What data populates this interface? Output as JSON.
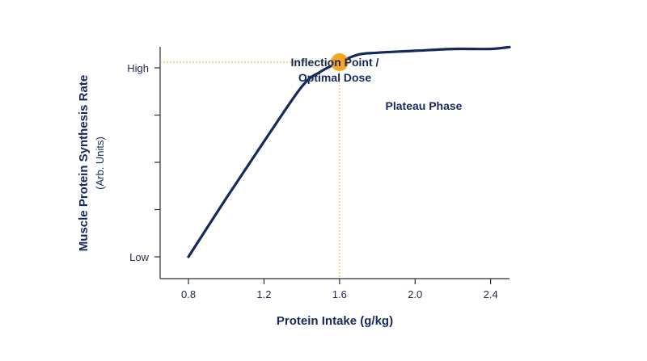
{
  "chart_data": {
    "type": "line",
    "xlabel": "Protein Intake (g/kg)",
    "ylabel": "Muscle Protein Synthesis Rate",
    "ylabel_sub": "(Arb. Units)",
    "xlim": [
      0.65,
      2.5
    ],
    "ylim": [
      0,
      1
    ],
    "x_ticks": [
      0.8,
      1.2,
      1.6,
      2.0,
      2.4
    ],
    "x_tick_labels": [
      "0.8",
      "1.2",
      "1.6",
      "2.0",
      "2.4"
    ],
    "y_ticks": [
      0,
      0.25,
      0.5,
      0.75,
      1
    ],
    "y_tick_labels": [
      "Low",
      "",
      "",
      "",
      "High"
    ],
    "grid": false,
    "series": [
      {
        "color": "#16295c",
        "x": [
          0.8,
          1.0,
          1.2,
          1.4,
          1.5,
          1.6,
          1.7,
          1.8,
          2.0,
          2.2,
          2.4,
          2.5
        ],
        "y": [
          0.0,
          0.31,
          0.61,
          0.9,
          0.98,
          1.03,
          1.07,
          1.08,
          1.09,
          1.1,
          1.1,
          1.11
        ]
      }
    ],
    "highlight_point": {
      "x": 1.6,
      "y": 1.03,
      "color": "#f5a623"
    },
    "annotations": {
      "inflection_line1": "Inflection Point /",
      "inflection_line2": "Optimal Dose",
      "plateau": "Plateau Phase"
    },
    "colors": {
      "line": "#16295c",
      "accent": "#f5a623",
      "text": "#16295c"
    }
  }
}
